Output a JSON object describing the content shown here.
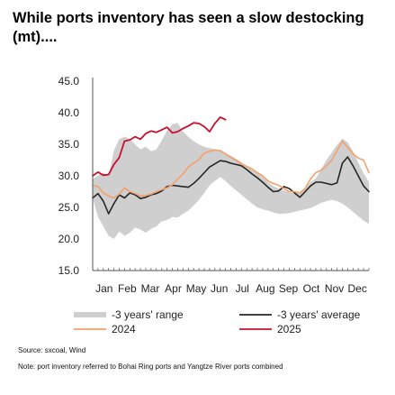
{
  "title": "While ports inventory has seen a slow destocking (mt)....",
  "source": "Source: sxcoal, Wind",
  "note": "Note: port inventory referred to Bohai Ring ports and Yangtze River ports combined",
  "colors": {
    "range": "#cfcfcf",
    "avg": "#262626",
    "y2024": "#f3a06d",
    "y2025": "#c8102e",
    "axis": "#555555"
  },
  "chart_data": {
    "type": "line",
    "title": "While ports inventory has seen a slow destocking (mt)....",
    "xlabel": "",
    "ylabel": "",
    "ylim": [
      15,
      45
    ],
    "y_ticks": [
      "45.0",
      "40.0",
      "35.0",
      "30.0",
      "25.0",
      "20.0",
      "15.0"
    ],
    "y_tick_values": [
      45,
      40,
      35,
      30,
      25,
      20,
      15
    ],
    "x_tick_labels": [
      "Jan",
      "Feb",
      "Mar",
      "Apr",
      "May",
      "Jun",
      "Jul",
      "Aug",
      "Sep",
      "Oct",
      "Nov",
      "Dec"
    ],
    "x_domain": [
      1,
      53
    ],
    "grid": false,
    "legend_position": "bottom",
    "series": [
      {
        "name": "-3 years' range",
        "kind": "band",
        "x": [
          1,
          2,
          3,
          4,
          5,
          6,
          7,
          8,
          9,
          10,
          11,
          12,
          13,
          14,
          15,
          16,
          17,
          18,
          19,
          20,
          21,
          22,
          23,
          24,
          25,
          26,
          27,
          28,
          29,
          30,
          31,
          32,
          33,
          34,
          35,
          36,
          37,
          38,
          39,
          40,
          41,
          42,
          43,
          44,
          45,
          46,
          47,
          48,
          49,
          50,
          51,
          52,
          53
        ],
        "high": [
          29.5,
          30.0,
          30.5,
          30.0,
          34.0,
          35.8,
          36.2,
          35.9,
          35.0,
          34.2,
          34.6,
          33.9,
          34.2,
          35.6,
          37.2,
          38.2,
          38.4,
          37.0,
          36.2,
          35.5,
          35.0,
          34.6,
          34.4,
          34.2,
          34.0,
          33.6,
          33.2,
          32.7,
          32.2,
          31.6,
          31.0,
          30.4,
          29.8,
          29.0,
          28.4,
          28.0,
          27.7,
          27.4,
          27.2,
          27.5,
          28.0,
          29.0,
          29.6,
          31.0,
          32.5,
          33.7,
          34.9,
          35.9,
          35.3,
          33.9,
          32.1,
          30.4,
          29.0
        ],
        "low": [
          26.5,
          23.5,
          22.0,
          20.5,
          20.0,
          21.2,
          20.5,
          21.0,
          21.8,
          21.5,
          21.0,
          21.6,
          22.0,
          22.8,
          23.0,
          23.5,
          23.4,
          24.0,
          24.5,
          25.3,
          26.2,
          27.3,
          28.5,
          29.2,
          29.8,
          29.2,
          28.4,
          27.7,
          27.0,
          26.3,
          25.6,
          25.0,
          24.7,
          24.5,
          24.2,
          24.0,
          24.0,
          24.1,
          24.3,
          24.5,
          24.7,
          24.9,
          25.3,
          25.7,
          26.0,
          26.2,
          26.0,
          25.6,
          25.0,
          24.3,
          23.6,
          22.9,
          22.4
        ]
      },
      {
        "name": "-3 years' average",
        "kind": "line",
        "x": [
          1,
          2,
          3,
          4,
          5,
          6,
          7,
          8,
          9,
          10,
          11,
          12,
          13,
          14,
          15,
          16,
          17,
          18,
          19,
          20,
          21,
          22,
          23,
          24,
          25,
          26,
          27,
          28,
          29,
          30,
          31,
          32,
          33,
          34,
          35,
          36,
          37,
          38,
          39,
          40,
          41,
          42,
          43,
          44,
          45,
          46,
          47,
          48,
          49,
          50,
          51,
          52,
          53
        ],
        "values": [
          26.5,
          27.2,
          26.0,
          24.0,
          25.6,
          27.0,
          26.5,
          27.3,
          27.0,
          26.4,
          26.6,
          27.0,
          27.2,
          27.6,
          28.3,
          28.5,
          28.4,
          28.3,
          28.2,
          28.8,
          29.6,
          30.5,
          31.4,
          31.9,
          32.4,
          32.3,
          32.0,
          31.8,
          31.6,
          31.0,
          30.3,
          29.7,
          29.0,
          28.2,
          27.5,
          27.6,
          28.3,
          28.0,
          27.3,
          26.6,
          27.5,
          28.4,
          29.0,
          29.0,
          28.8,
          28.6,
          28.9,
          32.0,
          33.0,
          31.6,
          30.0,
          28.4,
          27.5
        ]
      },
      {
        "name": "2024",
        "kind": "line",
        "x": [
          1,
          2,
          3,
          4,
          5,
          6,
          7,
          8,
          9,
          10,
          11,
          12,
          13,
          14,
          15,
          16,
          17,
          18,
          19,
          20,
          21,
          22,
          23,
          24,
          25,
          26,
          27,
          28,
          29,
          30,
          31,
          32,
          33,
          34,
          35,
          36,
          37,
          38,
          39,
          40,
          41,
          42,
          43,
          44,
          45,
          46,
          47,
          48,
          49,
          50,
          51,
          52,
          53
        ],
        "values": [
          28.5,
          28.3,
          27.3,
          26.8,
          26.5,
          27.1,
          28.1,
          27.5,
          27.2,
          26.8,
          26.9,
          27.1,
          27.5,
          27.8,
          28.1,
          28.6,
          29.5,
          30.3,
          31.4,
          32.0,
          32.6,
          33.6,
          33.9,
          34.1,
          34.0,
          33.5,
          32.9,
          32.5,
          31.8,
          31.5,
          31.1,
          30.5,
          30.0,
          29.2,
          28.8,
          28.5,
          28.0,
          27.5,
          27.5,
          27.3,
          28.0,
          29.5,
          30.5,
          30.9,
          31.6,
          32.5,
          34.0,
          35.5,
          34.5,
          33.5,
          32.8,
          32.5,
          30.5
        ]
      },
      {
        "name": "2025",
        "kind": "line",
        "x": [
          1,
          2,
          3,
          4,
          5,
          6,
          7,
          8,
          9,
          10,
          11,
          12,
          13,
          14,
          15,
          16,
          17,
          18,
          19,
          20,
          21,
          22,
          23,
          24,
          25,
          26
        ],
        "values": [
          30.0,
          30.6,
          30.1,
          30.2,
          31.8,
          32.9,
          35.5,
          35.7,
          36.2,
          35.8,
          36.7,
          37.1,
          36.9,
          37.3,
          37.7,
          36.8,
          37.0,
          37.5,
          37.9,
          38.4,
          38.3,
          37.8,
          37.0,
          38.3,
          39.3,
          38.9
        ]
      }
    ],
    "legend": [
      {
        "label": "-3 years' range",
        "series": "-3 years' range"
      },
      {
        "label": "-3 years' average",
        "series": "-3 years' average"
      },
      {
        "label": "2024",
        "series": "2024"
      },
      {
        "label": "2025",
        "series": "2025"
      }
    ]
  }
}
